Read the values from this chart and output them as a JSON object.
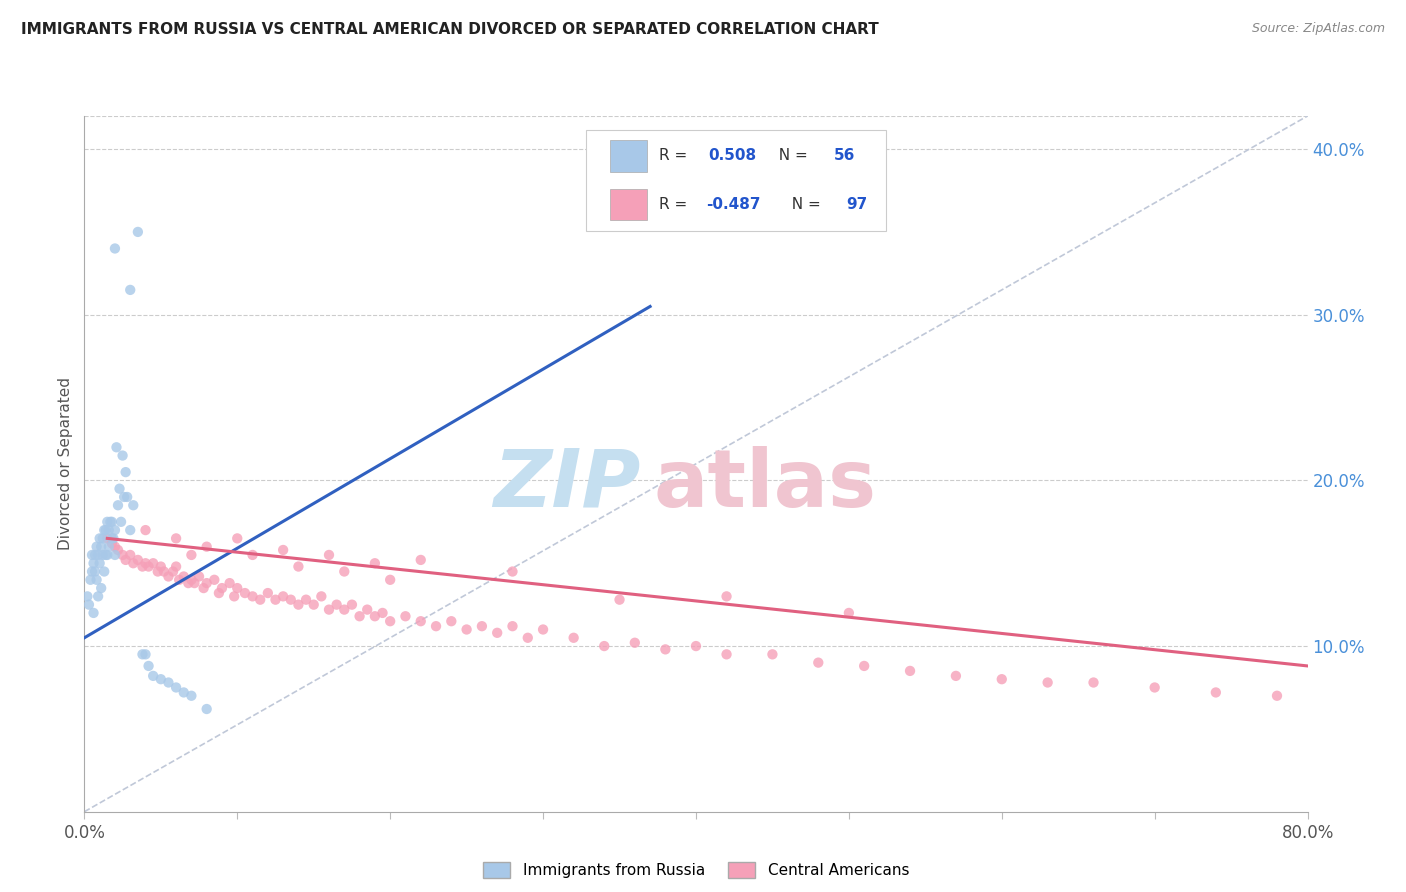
{
  "title": "IMMIGRANTS FROM RUSSIA VS CENTRAL AMERICAN DIVORCED OR SEPARATED CORRELATION CHART",
  "source": "Source: ZipAtlas.com",
  "ylabel": "Divorced or Separated",
  "xlim": [
    0.0,
    0.8
  ],
  "ylim": [
    0.0,
    0.42
  ],
  "y_ticks_right": [
    0.1,
    0.2,
    0.3,
    0.4
  ],
  "y_tick_labels_right": [
    "10.0%",
    "20.0%",
    "30.0%",
    "40.0%"
  ],
  "russia_color": "#a8c8e8",
  "central_color": "#f5a0b8",
  "russia_line_color": "#3060c0",
  "central_line_color": "#e06080",
  "diagonal_color": "#c0c8d8",
  "russia_line_x": [
    0.0,
    0.37
  ],
  "russia_line_y": [
    0.105,
    0.305
  ],
  "central_line_x": [
    0.015,
    0.8
  ],
  "central_line_y": [
    0.165,
    0.088
  ],
  "russia_scatter_x": [
    0.002,
    0.003,
    0.004,
    0.005,
    0.005,
    0.006,
    0.006,
    0.007,
    0.007,
    0.008,
    0.008,
    0.009,
    0.009,
    0.01,
    0.01,
    0.011,
    0.011,
    0.012,
    0.012,
    0.013,
    0.013,
    0.014,
    0.014,
    0.015,
    0.015,
    0.016,
    0.016,
    0.017,
    0.018,
    0.018,
    0.019,
    0.02,
    0.02,
    0.021,
    0.022,
    0.023,
    0.024,
    0.025,
    0.026,
    0.027,
    0.028,
    0.03,
    0.032,
    0.035,
    0.038,
    0.04,
    0.042,
    0.045,
    0.05,
    0.055,
    0.06,
    0.065,
    0.07,
    0.08,
    0.03,
    0.02
  ],
  "russia_scatter_y": [
    0.13,
    0.125,
    0.14,
    0.155,
    0.145,
    0.15,
    0.12,
    0.155,
    0.145,
    0.16,
    0.14,
    0.155,
    0.13,
    0.165,
    0.15,
    0.16,
    0.135,
    0.165,
    0.155,
    0.17,
    0.145,
    0.17,
    0.155,
    0.175,
    0.155,
    0.17,
    0.16,
    0.175,
    0.165,
    0.175,
    0.165,
    0.17,
    0.155,
    0.22,
    0.185,
    0.195,
    0.175,
    0.215,
    0.19,
    0.205,
    0.19,
    0.17,
    0.185,
    0.35,
    0.095,
    0.095,
    0.088,
    0.082,
    0.08,
    0.078,
    0.075,
    0.072,
    0.07,
    0.062,
    0.315,
    0.34
  ],
  "central_scatter_x": [
    0.015,
    0.018,
    0.02,
    0.022,
    0.025,
    0.027,
    0.03,
    0.032,
    0.035,
    0.038,
    0.04,
    0.042,
    0.045,
    0.048,
    0.05,
    0.052,
    0.055,
    0.058,
    0.06,
    0.062,
    0.065,
    0.068,
    0.07,
    0.072,
    0.075,
    0.078,
    0.08,
    0.085,
    0.088,
    0.09,
    0.095,
    0.098,
    0.1,
    0.105,
    0.11,
    0.115,
    0.12,
    0.125,
    0.13,
    0.135,
    0.14,
    0.145,
    0.15,
    0.155,
    0.16,
    0.165,
    0.17,
    0.175,
    0.18,
    0.185,
    0.19,
    0.195,
    0.2,
    0.21,
    0.22,
    0.23,
    0.24,
    0.25,
    0.26,
    0.27,
    0.28,
    0.29,
    0.3,
    0.32,
    0.34,
    0.36,
    0.38,
    0.4,
    0.42,
    0.45,
    0.48,
    0.51,
    0.54,
    0.57,
    0.6,
    0.63,
    0.66,
    0.7,
    0.74,
    0.78,
    0.07,
    0.1,
    0.13,
    0.16,
    0.19,
    0.22,
    0.28,
    0.35,
    0.42,
    0.5,
    0.04,
    0.06,
    0.08,
    0.11,
    0.14,
    0.17,
    0.2
  ],
  "central_scatter_y": [
    0.165,
    0.162,
    0.16,
    0.158,
    0.155,
    0.152,
    0.155,
    0.15,
    0.152,
    0.148,
    0.15,
    0.148,
    0.15,
    0.145,
    0.148,
    0.145,
    0.142,
    0.145,
    0.148,
    0.14,
    0.142,
    0.138,
    0.14,
    0.138,
    0.142,
    0.135,
    0.138,
    0.14,
    0.132,
    0.135,
    0.138,
    0.13,
    0.135,
    0.132,
    0.13,
    0.128,
    0.132,
    0.128,
    0.13,
    0.128,
    0.125,
    0.128,
    0.125,
    0.13,
    0.122,
    0.125,
    0.122,
    0.125,
    0.118,
    0.122,
    0.118,
    0.12,
    0.115,
    0.118,
    0.115,
    0.112,
    0.115,
    0.11,
    0.112,
    0.108,
    0.112,
    0.105,
    0.11,
    0.105,
    0.1,
    0.102,
    0.098,
    0.1,
    0.095,
    0.095,
    0.09,
    0.088,
    0.085,
    0.082,
    0.08,
    0.078,
    0.078,
    0.075,
    0.072,
    0.07,
    0.155,
    0.165,
    0.158,
    0.155,
    0.15,
    0.152,
    0.145,
    0.128,
    0.13,
    0.12,
    0.17,
    0.165,
    0.16,
    0.155,
    0.148,
    0.145,
    0.14
  ]
}
